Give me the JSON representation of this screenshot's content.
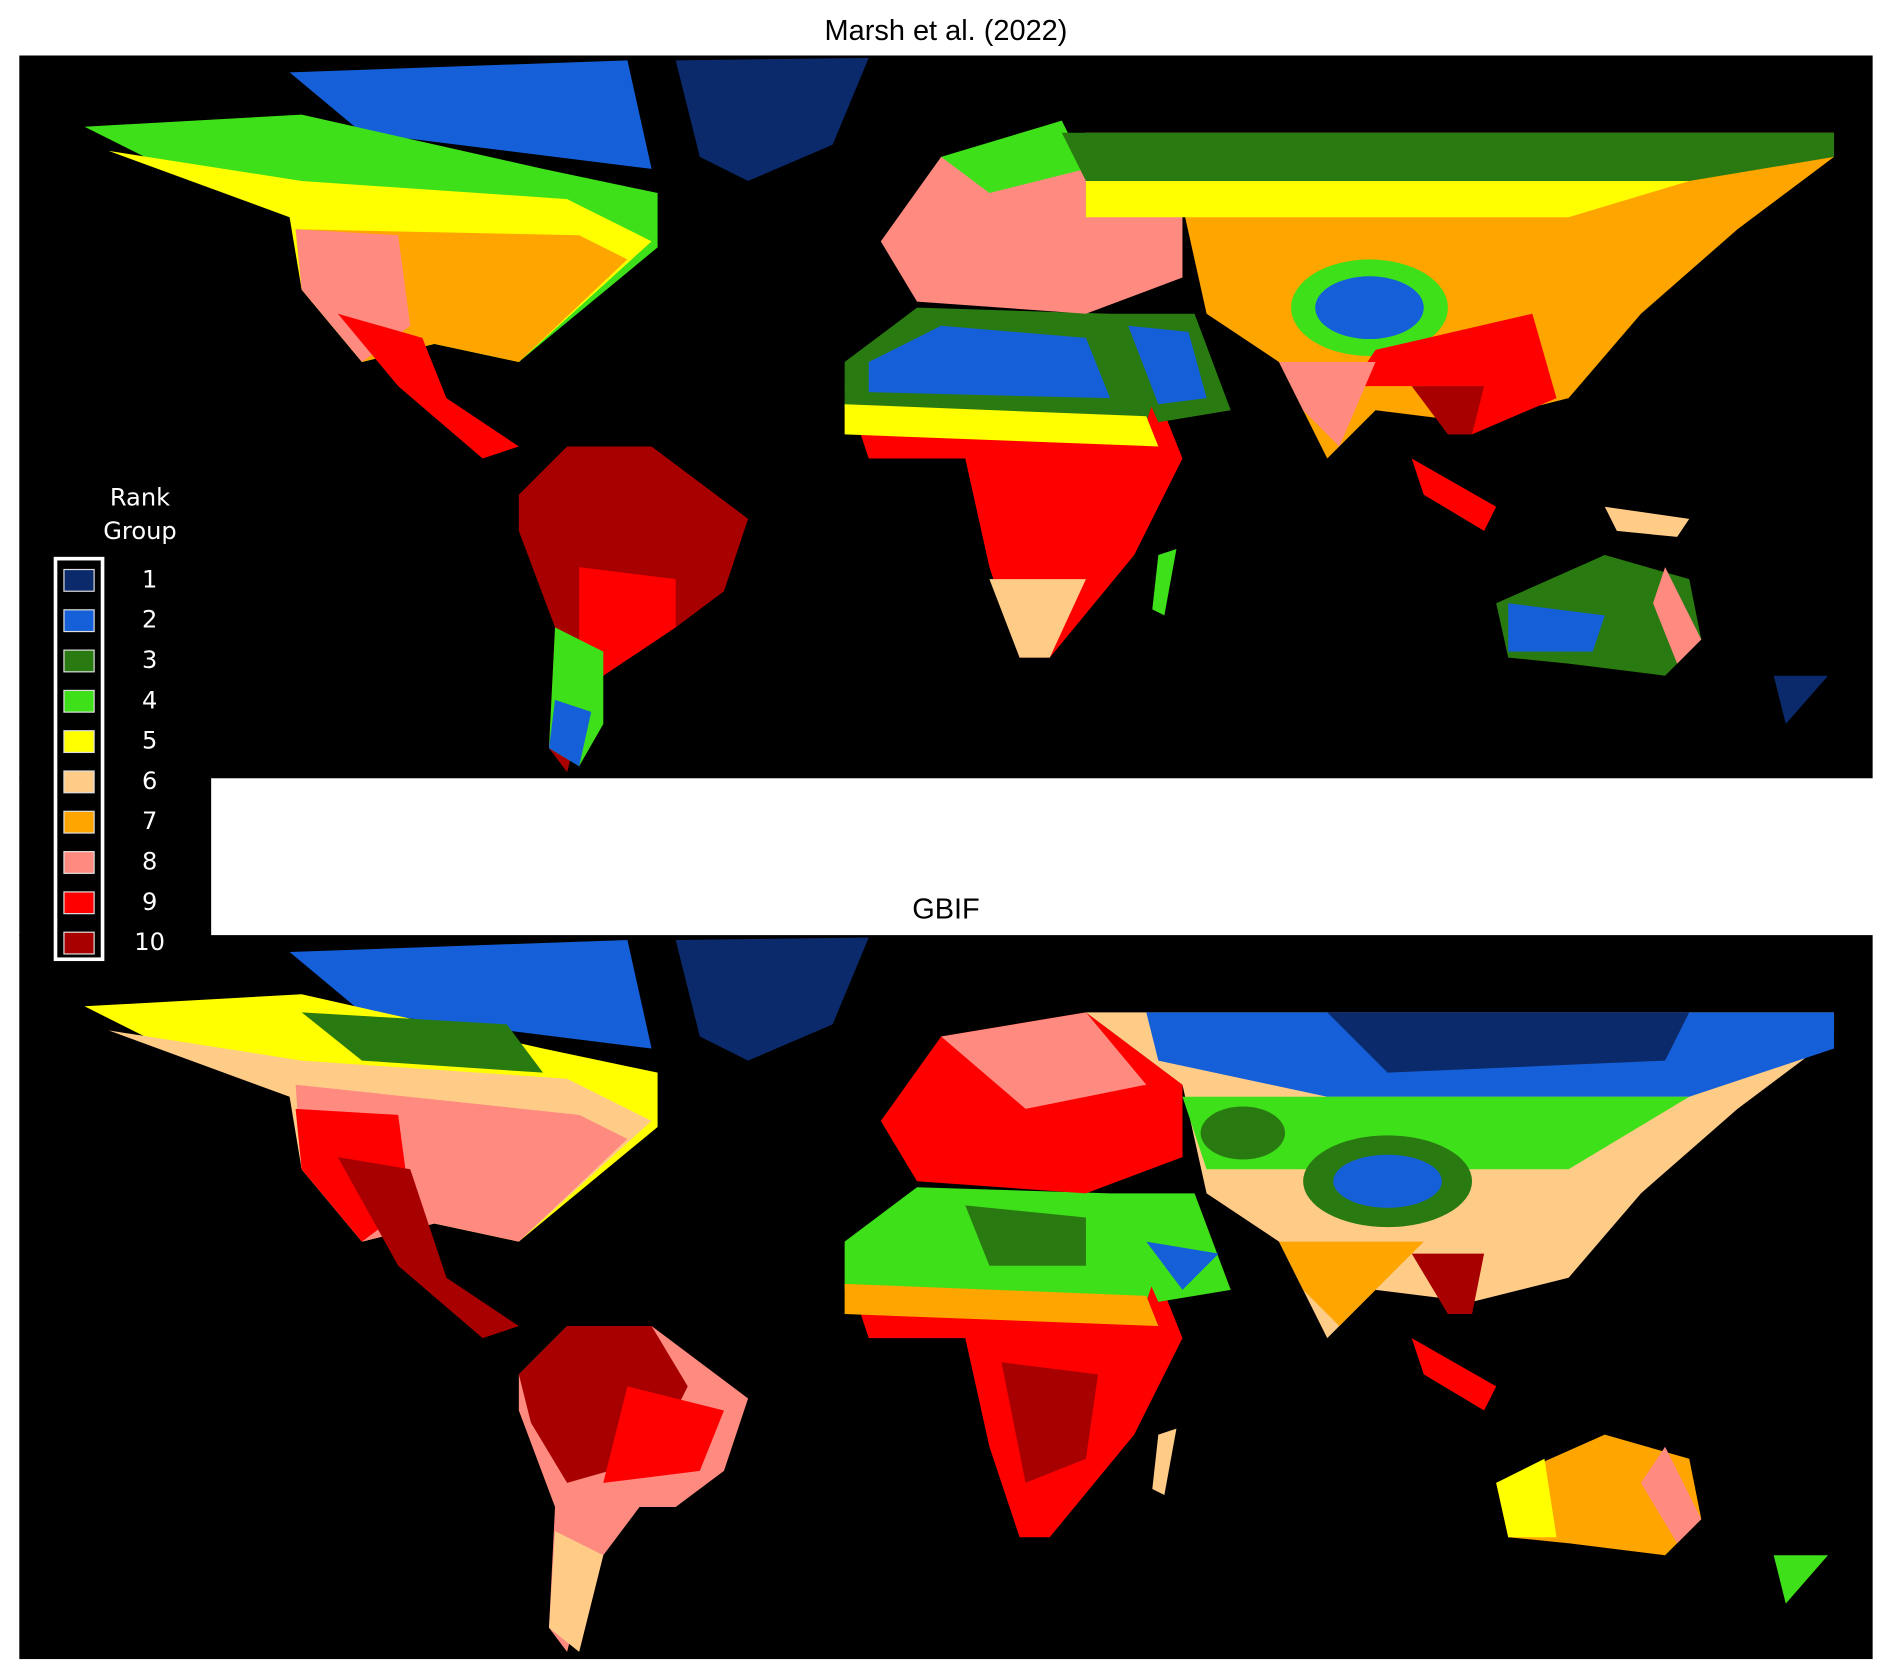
{
  "panels": [
    {
      "title": "Marsh et al. (2022)"
    },
    {
      "title": "GBIF"
    }
  ],
  "legend": {
    "title_lines": [
      "Rank",
      "Group"
    ],
    "items": [
      {
        "label": "1",
        "color": "#0b2a6b"
      },
      {
        "label": "2",
        "color": "#1560d8"
      },
      {
        "label": "3",
        "color": "#2a7a12"
      },
      {
        "label": "4",
        "color": "#3ee01a"
      },
      {
        "label": "5",
        "color": "#ffff00"
      },
      {
        "label": "6",
        "color": "#ffcc88"
      },
      {
        "label": "7",
        "color": "#ffa500"
      },
      {
        "label": "8",
        "color": "#ff8a80"
      },
      {
        "label": "9",
        "color": "#ff0000"
      },
      {
        "label": "10",
        "color": "#a80000"
      }
    ]
  }
}
